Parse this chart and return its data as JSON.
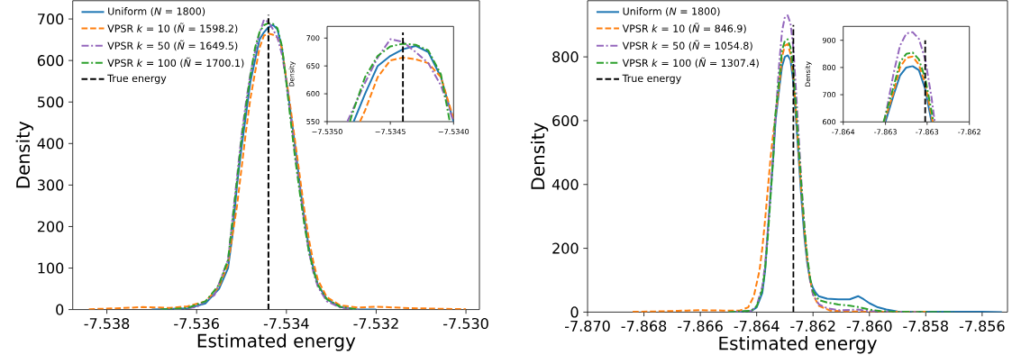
{
  "chart_data": [
    {
      "type": "line",
      "xlabel": "Estimated energy",
      "ylabel": "Density",
      "legend": "top left",
      "xlim": [
        -7.53876,
        -7.5297
      ],
      "ylim": [
        0,
        744
      ],
      "xticks": [
        {
          "value": -7.538,
          "label": "-7.538"
        },
        {
          "value": -7.536,
          "label": "-7.536"
        },
        {
          "value": -7.534,
          "label": "-7.534"
        },
        {
          "value": -7.532,
          "label": "-7.532"
        },
        {
          "value": -7.53,
          "label": "-7.530"
        }
      ],
      "yticks": [
        0,
        100,
        200,
        300,
        400,
        500,
        600,
        700
      ],
      "series": [
        {
          "name": "Uniform (*N* = 1800)",
          "color": "#1f77b4",
          "line_style": "solid",
          "x": [
            -7.537,
            -7.5362,
            -7.5358,
            -7.5355,
            -7.5353,
            -7.5352,
            -7.5351,
            -7.535,
            -7.5349,
            -7.5348,
            -7.5347,
            -7.5346,
            -7.5345,
            -7.5344,
            -7.5343,
            -7.5342,
            -7.5341,
            -7.534,
            -7.5339,
            -7.5338,
            -7.5337,
            -7.5336,
            -7.5335,
            -7.5334,
            -7.5333,
            -7.5331,
            -7.5328,
            -7.5325,
            -7.532
          ],
          "values": [
            0,
            3,
            15,
            50,
            100,
            180,
            300,
            390,
            470,
            550,
            600,
            650,
            668,
            680,
            686,
            675,
            630,
            550,
            470,
            390,
            300,
            220,
            150,
            100,
            60,
            25,
            6,
            1,
            0
          ]
        },
        {
          "name": "VPSR *k* = 10 (*Ñ* = 1598.2)",
          "color": "#ff7f0e",
          "line_style": "dashed",
          "x": [
            -7.5384,
            -7.5378,
            -7.5372,
            -7.5366,
            -7.5362,
            -7.5358,
            -7.5355,
            -7.5353,
            -7.5351,
            -7.535,
            -7.5349,
            -7.5348,
            -7.5347,
            -7.5346,
            -7.5345,
            -7.5344,
            -7.5343,
            -7.5342,
            -7.5341,
            -7.534,
            -7.5339,
            -7.5338,
            -7.5337,
            -7.5336,
            -7.5335,
            -7.5334,
            -7.5333,
            -7.5331,
            -7.5328,
            -7.5324,
            -7.532,
            -7.5314,
            -7.5306,
            -7.53
          ],
          "values": [
            1,
            3,
            6,
            4,
            8,
            20,
            55,
            110,
            250,
            340,
            430,
            510,
            570,
            630,
            660,
            665,
            662,
            655,
            630,
            555,
            480,
            400,
            320,
            240,
            170,
            115,
            72,
            30,
            10,
            5,
            7,
            4,
            2,
            1
          ]
        },
        {
          "name": "VPSR *k* = 50 (*Ñ* = 1649.5)",
          "color": "#9467bd",
          "line_style": "dashdot",
          "x": [
            -7.5365,
            -7.536,
            -7.5356,
            -7.5353,
            -7.5351,
            -7.535,
            -7.5349,
            -7.5348,
            -7.5347,
            -7.5346,
            -7.5345,
            -7.5344,
            -7.5343,
            -7.5342,
            -7.5341,
            -7.534,
            -7.5339,
            -7.5338,
            -7.5337,
            -7.5336,
            -7.5335,
            -7.5334,
            -7.5333,
            -7.5331,
            -7.5328,
            -7.5324
          ],
          "values": [
            0,
            6,
            35,
            120,
            320,
            420,
            500,
            570,
            620,
            665,
            698,
            693,
            675,
            655,
            615,
            550,
            460,
            370,
            290,
            210,
            140,
            90,
            55,
            20,
            5,
            0
          ]
        },
        {
          "name": "VPSR *k* = 100 (*Ñ* = 1700.1)",
          "color": "#2ca02c",
          "line_style": "dashdot",
          "x": [
            -7.5368,
            -7.5362,
            -7.5358,
            -7.5355,
            -7.5353,
            -7.5351,
            -7.535,
            -7.5349,
            -7.5348,
            -7.5347,
            -7.5346,
            -7.5345,
            -7.5344,
            -7.5343,
            -7.5342,
            -7.5341,
            -7.534,
            -7.5339,
            -7.5338,
            -7.5337,
            -7.5336,
            -7.5335,
            -7.5334,
            -7.5333,
            -7.5331,
            -7.5328,
            -7.5324
          ],
          "values": [
            0,
            4,
            20,
            60,
            120,
            310,
            410,
            490,
            565,
            630,
            668,
            685,
            690,
            688,
            678,
            635,
            545,
            450,
            360,
            280,
            205,
            140,
            95,
            60,
            25,
            7,
            0
          ]
        },
        {
          "name": "True energy",
          "color": "#000000",
          "line_style": "dashed",
          "x": [
            -7.5344,
            -7.5344
          ],
          "values": [
            0,
            710
          ]
        }
      ]
    },
    {
      "type": "line",
      "ylabel": "Density",
      "xlim": [
        -7.535,
        -7.534
      ],
      "ylim": [
        550,
        721
      ],
      "xticks": [
        {
          "value": -7.535,
          "label": "−7.5350"
        },
        {
          "value": -7.5345,
          "label": "−7.5345"
        },
        {
          "value": -7.534,
          "label": "−7.5340"
        }
      ],
      "yticks": [
        550,
        600,
        650,
        700
      ],
      "series": [
        {
          "color": "#1f77b4",
          "line_style": "solid",
          "x": [
            -7.53479,
            -7.5347,
            -7.5346,
            -7.5345,
            -7.5344,
            -7.5343,
            -7.5342,
            -7.5341,
            -7.534
          ],
          "values": [
            550,
            600,
            650,
            668,
            680,
            686,
            675,
            630,
            550
          ]
        },
        {
          "color": "#ff7f0e",
          "line_style": "dashed",
          "x": [
            -7.53474,
            -7.5347,
            -7.5346,
            -7.5345,
            -7.5344,
            -7.5343,
            -7.5342,
            -7.5341,
            -7.534
          ],
          "values": [
            550,
            570,
            630,
            660,
            665,
            662,
            655,
            630,
            555
          ]
        },
        {
          "color": "#9467bd",
          "line_style": "dashdot",
          "x": [
            -7.53484,
            -7.5348,
            -7.5347,
            -7.5346,
            -7.5345,
            -7.5344,
            -7.5343,
            -7.5342,
            -7.5341,
            -7.534
          ],
          "values": [
            550,
            570,
            620,
            665,
            698,
            693,
            675,
            655,
            615,
            550
          ]
        },
        {
          "color": "#2ca02c",
          "line_style": "dashdot",
          "x": [
            -7.53482,
            -7.5348,
            -7.5347,
            -7.5346,
            -7.5345,
            -7.5344,
            -7.5343,
            -7.5342,
            -7.5341,
            -7.53403
          ],
          "values": [
            550,
            565,
            630,
            668,
            685,
            690,
            688,
            678,
            635,
            550
          ]
        },
        {
          "color": "#000000",
          "line_style": "dashed",
          "x": [
            -7.5344,
            -7.5344
          ],
          "values": [
            550,
            710
          ]
        }
      ]
    },
    {
      "type": "line",
      "xlabel": "Estimated energy",
      "ylabel": "Density",
      "legend": "top left",
      "xlim": [
        -7.87,
        -7.8551
      ],
      "ylim": [
        0,
        976
      ],
      "xticks": [
        {
          "value": -7.87,
          "label": "-7.870"
        },
        {
          "value": -7.868,
          "label": "-7.868"
        },
        {
          "value": -7.866,
          "label": "-7.866"
        },
        {
          "value": -7.864,
          "label": "-7.864"
        },
        {
          "value": -7.862,
          "label": "-7.862"
        },
        {
          "value": -7.86,
          "label": "-7.860"
        },
        {
          "value": -7.858,
          "label": "-7.858"
        },
        {
          "value": -7.856,
          "label": "-7.856"
        }
      ],
      "yticks": [
        0,
        200,
        400,
        600,
        800
      ],
      "series": [
        {
          "name": "Uniform (*N* = 1800)",
          "color": "#1f77b4",
          "line_style": "solid",
          "x": [
            -7.865,
            -7.8642,
            -7.864,
            -7.8638,
            -7.8637,
            -7.8636,
            -7.8635,
            -7.8634,
            -7.86333,
            -7.8632,
            -7.8631,
            -7.863,
            -7.8629,
            -7.8628,
            -7.8627,
            -7.8626,
            -7.8625,
            -7.8624,
            -7.8623,
            -7.8622,
            -7.8621,
            -7.862,
            -7.8619,
            -7.8618,
            -7.8615,
            -7.8611,
            -7.8607,
            -7.8604,
            -7.8602,
            -7.86,
            -7.8597,
            -7.8594,
            -7.859,
            -7.858,
            -7.856,
            -7.8553
          ],
          "values": [
            0,
            3,
            15,
            60,
            130,
            260,
            380,
            500,
            600,
            700,
            770,
            800,
            805,
            790,
            720,
            600,
            470,
            340,
            230,
            150,
            100,
            75,
            60,
            50,
            42,
            40,
            40,
            50,
            40,
            28,
            15,
            8,
            2,
            1,
            1,
            0
          ]
        },
        {
          "name": "VPSR *k* = 10 (*Ñ* = 846.9)",
          "color": "#ff7f0e",
          "line_style": "dashed",
          "x": [
            -7.8684,
            -7.8676,
            -7.8668,
            -7.866,
            -7.8652,
            -7.8646,
            -7.8643,
            -7.8641,
            -7.8639,
            -7.8638,
            -7.8637,
            -7.8636,
            -7.8635,
            -7.8634,
            -7.86335,
            -7.8632,
            -7.8631,
            -7.863,
            -7.8629,
            -7.8628,
            -7.8627,
            -7.8626,
            -7.8625,
            -7.8624,
            -7.8623,
            -7.8622,
            -7.8621,
            -7.862,
            -7.8618,
            -7.8614,
            -7.8608,
            -7.86,
            -7.858
          ],
          "values": [
            1,
            2,
            4,
            6,
            5,
            5,
            15,
            50,
            130,
            200,
            290,
            390,
            490,
            570,
            600,
            710,
            800,
            835,
            840,
            810,
            740,
            620,
            490,
            360,
            250,
            160,
            100,
            55,
            20,
            5,
            2,
            1,
            1
          ]
        },
        {
          "name": "VPSR *k* = 50 (*Ñ* = 1054.8)",
          "color": "#9467bd",
          "line_style": "dashdot",
          "x": [
            -7.8648,
            -7.8642,
            -7.864,
            -7.8638,
            -7.8637,
            -7.8636,
            -7.8635,
            -7.8634,
            -7.86333,
            -7.8632,
            -7.8631,
            -7.863,
            -7.8629,
            -7.8628,
            -7.8627,
            -7.8626,
            -7.8625,
            -7.8624,
            -7.8623,
            -7.8622,
            -7.8621,
            -7.862,
            -7.8618,
            -7.8615,
            -7.8611,
            -7.8607,
            -7.8604,
            -7.86,
            -7.8595,
            -7.858
          ],
          "values": [
            0,
            3,
            20,
            80,
            150,
            260,
            390,
            520,
            610,
            780,
            880,
            925,
            930,
            905,
            830,
            690,
            540,
            390,
            260,
            160,
            95,
            55,
            25,
            12,
            6,
            7,
            8,
            3,
            1,
            0
          ]
        },
        {
          "name": "VPSR *k* = 100 (*Ñ* = 1307.4)",
          "color": "#2ca02c",
          "line_style": "dashdot",
          "x": [
            -7.865,
            -7.8642,
            -7.864,
            -7.8638,
            -7.8637,
            -7.8636,
            -7.8635,
            -7.8634,
            -7.86336,
            -7.8632,
            -7.8631,
            -7.863,
            -7.8629,
            -7.8628,
            -7.8627,
            -7.8626,
            -7.8625,
            -7.8624,
            -7.8623,
            -7.8622,
            -7.8621,
            -7.862,
            -7.8618,
            -7.8615,
            -7.8611,
            -7.8607,
            -7.8604,
            -7.86,
            -7.8596,
            -7.859,
            -7.857
          ],
          "values": [
            0,
            4,
            18,
            70,
            135,
            240,
            370,
            500,
            600,
            730,
            820,
            850,
            855,
            830,
            760,
            640,
            510,
            380,
            260,
            170,
            105,
            65,
            38,
            30,
            24,
            20,
            16,
            8,
            3,
            1,
            0
          ]
        },
        {
          "name": "True energy",
          "color": "#000000",
          "line_style": "dashed",
          "x": [
            -7.8627,
            -7.8627
          ],
          "values": [
            0,
            900
          ]
        }
      ]
    },
    {
      "type": "line",
      "ylabel": "Density",
      "xlim": [
        -7.864,
        -7.862
      ],
      "ylim": [
        600,
        951
      ],
      "xticks": [
        {
          "value": -7.864,
          "label": "-7.864"
        },
        {
          "value": -7.86333,
          "label": "-7.863"
        },
        {
          "value": -7.86267,
          "label": "-7.863"
        },
        {
          "value": -7.862,
          "label": "-7.862"
        }
      ],
      "yticks": [
        600,
        700,
        800,
        900
      ],
      "series": [
        {
          "color": "#1f77b4",
          "line_style": "solid",
          "x": [
            -7.86333,
            -7.8632,
            -7.8631,
            -7.863,
            -7.8629,
            -7.8628,
            -7.8627,
            -7.8626
          ],
          "values": [
            600,
            700,
            770,
            800,
            805,
            790,
            720,
            600
          ]
        },
        {
          "color": "#ff7f0e",
          "line_style": "dashed",
          "x": [
            -7.86335,
            -7.8632,
            -7.8631,
            -7.863,
            -7.8629,
            -7.8628,
            -7.8627,
            -7.8626,
            -7.86258
          ],
          "values": [
            600,
            710,
            800,
            835,
            840,
            810,
            740,
            620,
            600
          ]
        },
        {
          "color": "#9467bd",
          "line_style": "dashdot",
          "x": [
            -7.86335,
            -7.8632,
            -7.8631,
            -7.863,
            -7.8629,
            -7.8628,
            -7.8627,
            -7.8626,
            -7.86255
          ],
          "values": [
            600,
            780,
            880,
            925,
            930,
            905,
            830,
            690,
            600
          ]
        },
        {
          "color": "#2ca02c",
          "line_style": "dashdot",
          "x": [
            -7.86336,
            -7.8632,
            -7.8631,
            -7.863,
            -7.8629,
            -7.8628,
            -7.8627,
            -7.8626,
            -7.86257
          ],
          "values": [
            600,
            730,
            820,
            850,
            855,
            830,
            760,
            640,
            600
          ]
        },
        {
          "color": "#000000",
          "line_style": "dashed",
          "x": [
            -7.8627,
            -7.8627
          ],
          "values": [
            600,
            900
          ]
        }
      ]
    }
  ]
}
